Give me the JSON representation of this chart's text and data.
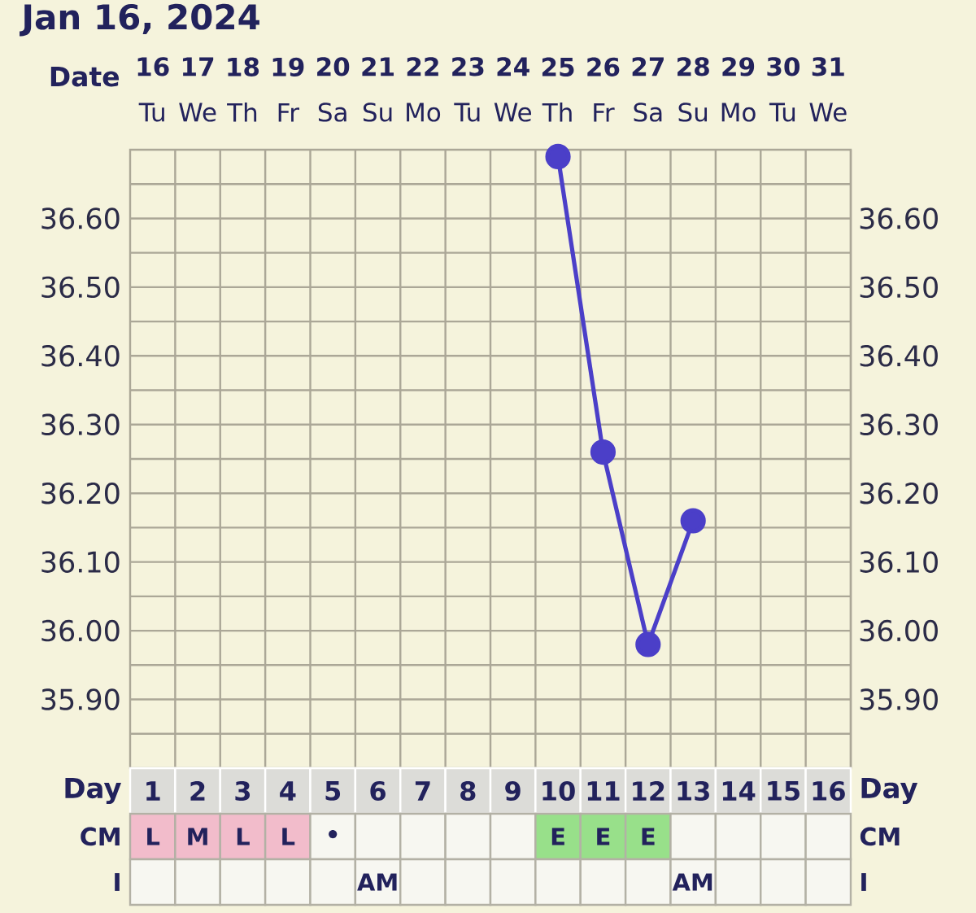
{
  "chart_data": [
    {
      "type": "line",
      "title": "Jan 16, 2024",
      "xlabel": "Date",
      "categories": [
        "**16** Tu",
        "**17** We",
        "**18** Th",
        "**19** Fr",
        "**20** Sa",
        "**21** Su",
        "**22** Mo",
        "**23** Tu",
        "**24** We",
        "**25** Th",
        "**26** Fr",
        "**27** Sa",
        "**28** Su",
        "**29** Mo",
        "**30** Tu",
        "**31** We"
      ],
      "values": [
        null,
        null,
        null,
        null,
        null,
        null,
        null,
        null,
        null,
        36.69,
        36.26,
        35.98,
        36.16,
        null,
        null,
        null
      ],
      "color": "#4B3FC8",
      "ylim": [
        35.8,
        36.7
      ],
      "yticks": [
        {
          "value": 35.85,
          "label": null
        },
        {
          "value": 35.9,
          "label": "35.90"
        },
        {
          "value": 35.95,
          "label": null
        },
        {
          "value": 36.0,
          "label": "36.00"
        },
        {
          "value": 36.05,
          "label": null
        },
        {
          "value": 36.1,
          "label": "36.10"
        },
        {
          "value": 36.15,
          "label": null
        },
        {
          "value": 36.2,
          "label": "36.20"
        },
        {
          "value": 36.25,
          "label": null
        },
        {
          "value": 36.3,
          "label": "36.30"
        },
        {
          "value": 36.35,
          "label": null
        },
        {
          "value": 36.4,
          "label": "36.40"
        },
        {
          "value": 36.45,
          "label": null
        },
        {
          "value": 36.5,
          "label": "36.50"
        },
        {
          "value": 36.55,
          "label": null
        },
        {
          "value": 36.6,
          "label": "36.60"
        },
        {
          "value": 36.65,
          "label": null
        }
      ],
      "y2lim": [
        35.8,
        36.7
      ],
      "y2ticks": [
        {
          "value": 35.9,
          "label": "35.90"
        },
        {
          "value": 36.0,
          "label": "36.00"
        },
        {
          "value": 36.1,
          "label": "36.10"
        },
        {
          "value": 36.2,
          "label": "36.20"
        },
        {
          "value": 36.3,
          "label": "36.30"
        },
        {
          "value": 36.4,
          "label": "36.40"
        },
        {
          "value": 36.5,
          "label": "36.50"
        },
        {
          "value": 36.6,
          "label": "36.60"
        }
      ],
      "grid": true,
      "marker": "circle",
      "line_style": "solid"
    },
    {
      "type": "heatmap",
      "xlabel": "Day",
      "categories": [
        "1",
        "2",
        "3",
        "4",
        "5",
        "6",
        "7",
        "8",
        "9",
        "10",
        "11",
        "12",
        "13",
        "14",
        "15",
        "16"
      ],
      "y_categories": [
        "CM",
        "I"
      ],
      "y2_categories": [
        "CM",
        "I"
      ],
      "cells": [
        [
          null,
          null,
          null,
          null,
          null,
          null,
          null,
          null,
          null,
          null,
          null,
          null,
          null,
          null,
          null,
          null
        ],
        [
          null,
          null,
          null,
          null,
          null,
          null,
          null,
          null,
          null,
          null,
          null,
          null,
          null,
          null,
          null,
          null
        ]
      ],
      "cell_labels": [
        [
          "L",
          "M",
          "L",
          "L",
          "•",
          null,
          null,
          null,
          null,
          "E",
          "E",
          "E",
          null,
          null,
          null,
          null
        ],
        [
          null,
          null,
          null,
          null,
          null,
          "AM",
          null,
          null,
          null,
          null,
          null,
          null,
          "AM",
          null,
          null,
          null
        ]
      ],
      "colors": [
        [
          "#F2BCCB",
          "#F2BCCB",
          "#F2BCCB",
          "#F2BCCB",
          null,
          null,
          null,
          null,
          null,
          "#98E08A",
          "#98E08A",
          "#98E08A",
          null,
          null,
          null,
          null
        ],
        [
          null,
          null,
          null,
          null,
          null,
          null,
          null,
          null,
          null,
          null,
          null,
          null,
          null,
          null,
          null,
          null
        ]
      ]
    }
  ]
}
